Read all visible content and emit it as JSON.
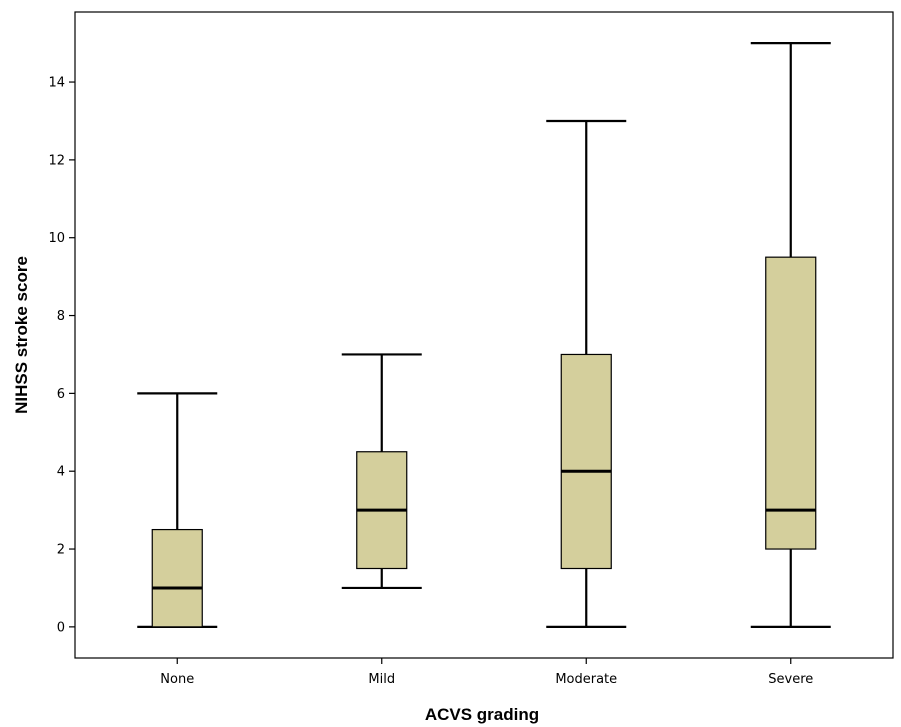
{
  "chart_data": {
    "type": "boxplot",
    "title": "",
    "xlabel": "ACVS grading",
    "ylabel": "NIHSS stroke score",
    "categories": [
      "None",
      "Mild",
      "Moderate",
      "Severe"
    ],
    "yticks": [
      "0",
      "2",
      "4",
      "6",
      "8",
      "10",
      "12",
      "14"
    ],
    "ylim": [
      -0.8,
      15.8
    ],
    "grid": false,
    "legend": "none",
    "box_fill": "#d4cf9c",
    "stroke": "#000000",
    "boxes": [
      {
        "category": "None",
        "min": 0,
        "q1": 0,
        "median": 1,
        "q3": 2.5,
        "max": 6
      },
      {
        "category": "Mild",
        "min": 1,
        "q1": 1.5,
        "median": 3,
        "q3": 4.5,
        "max": 7
      },
      {
        "category": "Moderate",
        "min": 0,
        "q1": 1.5,
        "median": 4,
        "q3": 7,
        "max": 13
      },
      {
        "category": "Severe",
        "min": 0,
        "q1": 2,
        "median": 3,
        "q3": 9.5,
        "max": 15
      }
    ]
  }
}
